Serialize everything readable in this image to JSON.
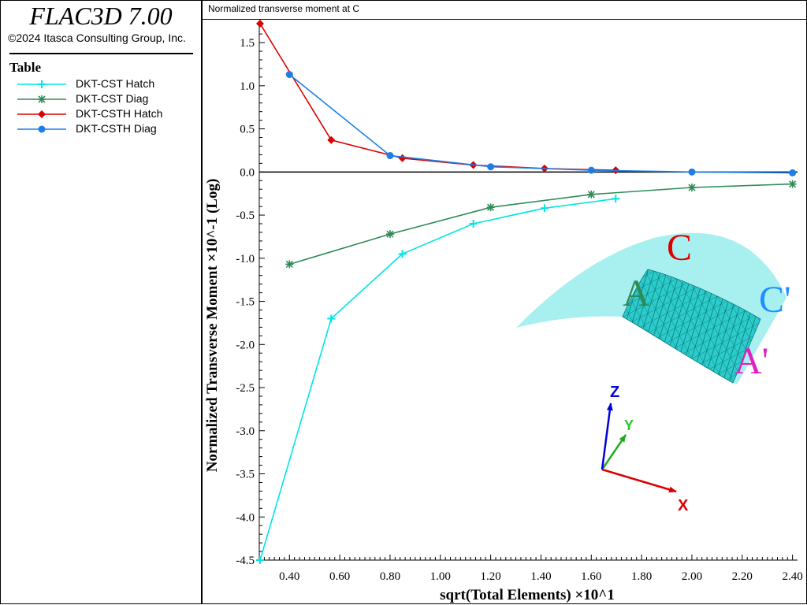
{
  "app": {
    "title": "FLAC3D 7.00",
    "copyright": "©2024 Itasca Consulting Group, Inc."
  },
  "legend": {
    "title": "Table"
  },
  "chart_data": {
    "type": "line",
    "title": "Normalized transverse moment at C",
    "xlabel": "sqrt(Total Elements) ×10^1",
    "ylabel": "Normalized Transverse Moment ×10^-1 (Log)",
    "xlim": [
      0.28,
      2.42
    ],
    "ylim": [
      -4.5,
      1.72
    ],
    "xticks": [
      "0.40",
      "0.60",
      "0.80",
      "1.00",
      "1.20",
      "1.40",
      "1.60",
      "1.80",
      "2.00",
      "2.20",
      "2.40"
    ],
    "yticks": [
      "1.5",
      "1.0",
      "0.5",
      "0.0",
      "-0.5",
      "-1.0",
      "-1.5",
      "-2.0",
      "-2.5",
      "-3.0",
      "-3.5",
      "-4.0",
      "-4.5"
    ],
    "grid": false,
    "legend_position": "sidebar",
    "series": [
      {
        "name": "DKT-CST Hatch",
        "color": "#00e5e5",
        "marker": "plus",
        "x": [
          0.283,
          0.566,
          0.849,
          1.131,
          1.414,
          1.697
        ],
        "y": [
          -4.5,
          -1.7,
          -0.95,
          -0.6,
          -0.42,
          -0.31
        ]
      },
      {
        "name": "DKT-CST Diag",
        "color": "#2e8b57",
        "marker": "asterisk",
        "x": [
          0.4,
          0.8,
          1.2,
          1.6,
          2.0,
          2.4
        ],
        "y": [
          -1.07,
          -0.72,
          -0.41,
          -0.26,
          -0.18,
          -0.14
        ]
      },
      {
        "name": "DKT-CSTH Hatch",
        "color": "#dd0000",
        "marker": "diamond",
        "x": [
          0.283,
          0.566,
          0.849,
          1.131,
          1.414,
          1.697
        ],
        "y": [
          1.72,
          0.37,
          0.16,
          0.08,
          0.04,
          0.02
        ]
      },
      {
        "name": "DKT-CSTH Diag",
        "color": "#1e7ee6",
        "marker": "circle",
        "x": [
          0.4,
          0.8,
          1.2,
          1.6,
          2.0,
          2.4
        ],
        "y": [
          1.13,
          0.19,
          0.06,
          0.02,
          0.0,
          -0.01
        ]
      }
    ]
  },
  "model_view": {
    "labels": {
      "A": "A",
      "A_prime": "A'",
      "C": "C",
      "C_prime": "C'"
    },
    "axes": {
      "x": "X",
      "y": "Y",
      "z": "Z"
    }
  }
}
